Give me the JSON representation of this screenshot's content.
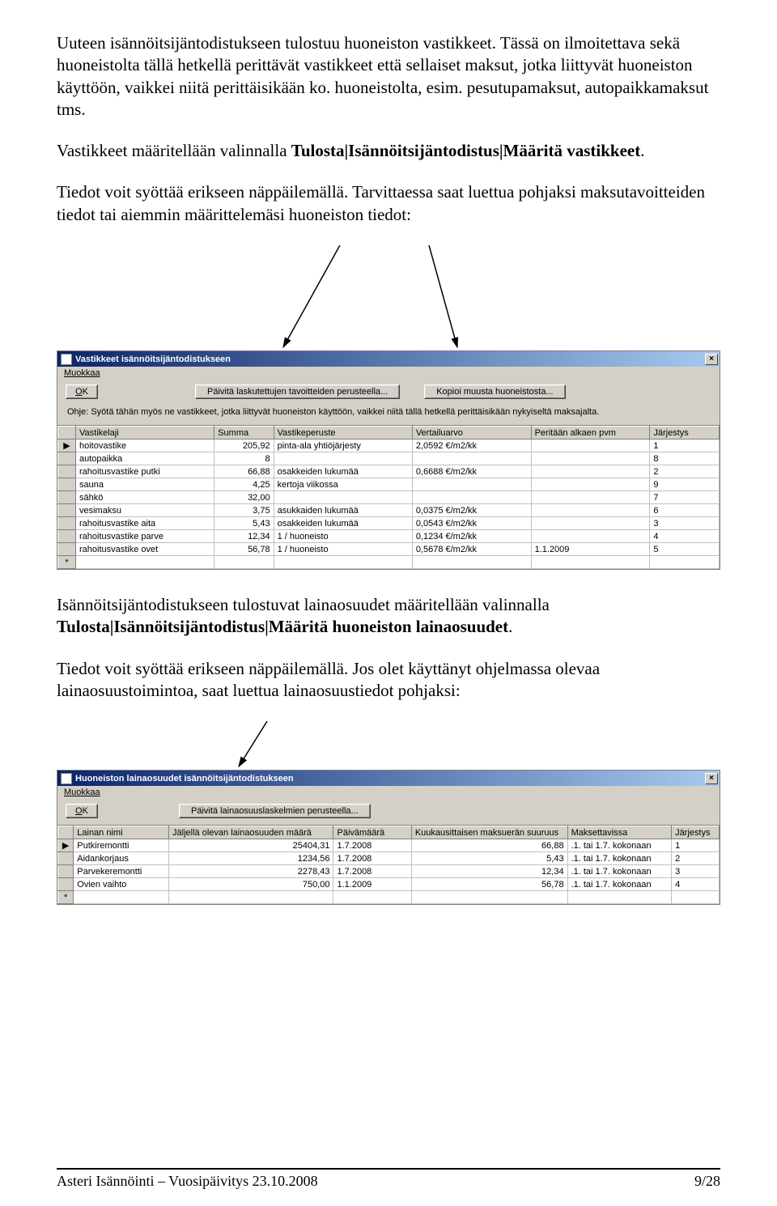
{
  "para1": "Uuteen isännöitsijäntodistukseen tulostuu huoneiston vastikkeet. Tässä on ilmoitettava sekä huoneistolta tällä hetkellä perittävät vastikkeet että sellaiset maksut, jotka liittyvät huoneiston käyttöön, vaikkei niitä perittäisikään ko. huoneistolta, esim. pesutupamaksut, autopaikkamaksut tms.",
  "para2_pre": "Vastikkeet määritellään valinnalla ",
  "para2_bold": "Tulosta|Isännöitsijäntodistus|Määritä vastikkeet",
  "para2_post": ".",
  "para3": "Tiedot voit syöttää erikseen näppäilemällä. Tarvittaessa saat luettua pohjaksi maksutavoitteiden tiedot tai aiemmin määrittelemäsi huoneiston tiedot:",
  "para4_pre": "Isännöitsijäntodistukseen tulostuvat lainaosuudet määritellään valinnalla ",
  "para4_bold": "Tulosta|Isännöitsijäntodistus|Määritä huoneiston lainaosuudet",
  "para4_post": ".",
  "para5": "Tiedot voit syöttää erikseen näppäilemällä. Jos olet käyttänyt ohjelmassa olevaa lainaosuustoimintoa, saat luettua lainaosuustiedot pohjaksi:",
  "dialog1": {
    "title": "Vastikkeet isännöitsijäntodistukseen",
    "menu": "Muokkaa",
    "menu_u": "M",
    "ok": "OK",
    "ok_u": "O",
    "btn1": "Päivitä laskutettujen tavoitteiden perusteella...",
    "btn2": "Kopioi muusta huoneistosta...",
    "hint": "Ohje: Syötä tähän myös ne vastikkeet, jotka liittyvät huoneiston käyttöön, vaikkei niitä tällä hetkellä perittäisikään nykyiseltä maksajalta.",
    "headers": [
      "Vastikelaji",
      "Summa",
      "Vastikeperuste",
      "Vertailuarvo",
      "Peritään alkaen pvm",
      "Järjestys"
    ],
    "rows": [
      {
        "mark": "▶",
        "c": [
          "hoitovastike",
          "205,92",
          "pinta-ala yhtiöjärjesty",
          "2,0592 €/m2/kk",
          "",
          "1"
        ]
      },
      {
        "mark": "",
        "c": [
          "autopaikka",
          "8",
          "",
          "",
          "",
          "8"
        ]
      },
      {
        "mark": "",
        "c": [
          "rahoitusvastike putki",
          "66,88",
          "osakkeiden lukumää",
          "0,6688 €/m2/kk",
          "",
          "2"
        ]
      },
      {
        "mark": "",
        "c": [
          "sauna",
          "4,25",
          "kertoja viikossa",
          "",
          "",
          "9"
        ]
      },
      {
        "mark": "",
        "c": [
          "sähkö",
          "32,00",
          "",
          "",
          "",
          "7"
        ]
      },
      {
        "mark": "",
        "c": [
          "vesimaksu",
          "3,75",
          "asukkaiden lukumää",
          "0,0375 €/m2/kk",
          "",
          "6"
        ]
      },
      {
        "mark": "",
        "c": [
          "rahoitusvastike aita",
          "5,43",
          "osakkeiden lukumää",
          "0,0543 €/m2/kk",
          "",
          "3"
        ]
      },
      {
        "mark": "",
        "c": [
          "rahoitusvastike parve",
          "12,34",
          "1 / huoneisto",
          "0,1234 €/m2/kk",
          "",
          "4"
        ]
      },
      {
        "mark": "",
        "c": [
          "rahoitusvastike ovet",
          "56,78",
          "1 / huoneisto",
          "0,5678 €/m2/kk",
          "1.1.2009",
          "5"
        ]
      },
      {
        "mark": "*",
        "c": [
          "",
          "",
          "",
          "",
          "",
          ""
        ]
      }
    ]
  },
  "dialog2": {
    "title": "Huoneiston lainaosuudet isännöitsijäntodistukseen",
    "menu": "Muokkaa",
    "menu_u": "M",
    "ok": "OK",
    "ok_u": "O",
    "btn1": "Päivitä lainaosuuslaskelmien perusteella...",
    "headers": [
      "Lainan nimi",
      "Jäljellä olevan lainaosuuden määrä",
      "Päivämäärä",
      "Kuukausittaisen maksuerän suuruus",
      "Maksettavissa",
      "Järjestys"
    ],
    "rows": [
      {
        "mark": "▶",
        "c": [
          "Putkiremontti",
          "25404,31",
          "1.7.2008",
          "66,88",
          ".1. tai 1.7. kokonaan",
          "1"
        ]
      },
      {
        "mark": "",
        "c": [
          "Aidankorjaus",
          "1234,56",
          "1.7.2008",
          "5,43",
          ".1. tai 1.7. kokonaan",
          "2"
        ]
      },
      {
        "mark": "",
        "c": [
          "Parvekeremontti",
          "2278,43",
          "1.7.2008",
          "12,34",
          ".1. tai 1.7. kokonaan",
          "3"
        ]
      },
      {
        "mark": "",
        "c": [
          "Ovien vaihto",
          "750,00",
          "1.1.2009",
          "56,78",
          ".1. tai 1.7. kokonaan",
          "4"
        ]
      },
      {
        "mark": "*",
        "c": [
          "",
          "",
          "",
          "",
          "",
          ""
        ]
      }
    ]
  },
  "footer_left": "Asteri Isännöinti – Vuosipäivitys 23.10.2008",
  "footer_right": "9/28"
}
